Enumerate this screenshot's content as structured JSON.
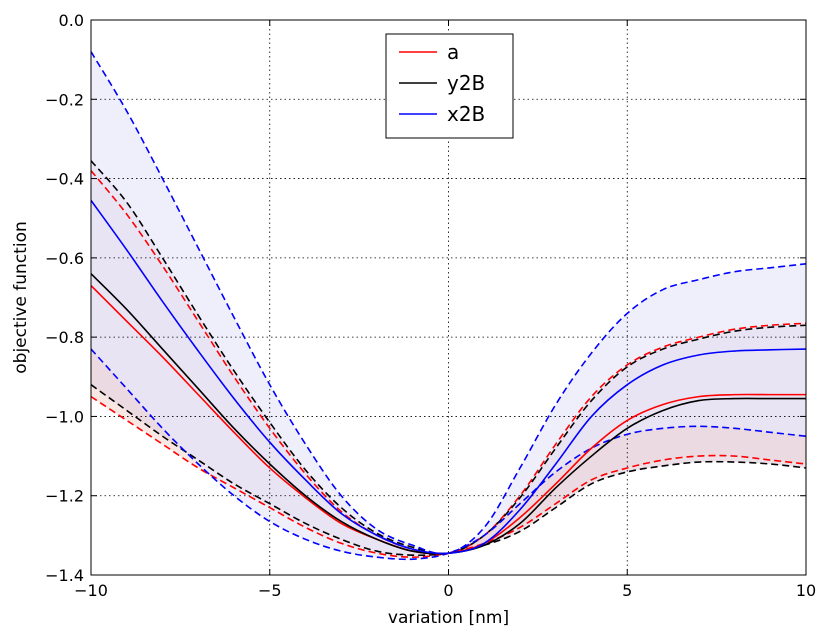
{
  "chart_data": {
    "type": "line",
    "title": "",
    "xlabel": "variation [nm]",
    "ylabel": "objective function",
    "xlim": [
      -10,
      10
    ],
    "ylim": [
      -1.4,
      0.0
    ],
    "xticks": [
      -10,
      -5,
      0,
      5,
      10
    ],
    "yticks": [
      0.0,
      -0.2,
      -0.4,
      -0.6,
      -0.8,
      -1.0,
      -1.2,
      -1.4
    ],
    "xtick_labels": [
      "−10",
      "−5",
      "0",
      "5",
      "10"
    ],
    "ytick_labels": [
      "0.0",
      "−0.2",
      "−0.4",
      "−0.6",
      "−0.8",
      "−1.0",
      "−1.2",
      "−1.4"
    ],
    "grid": true,
    "legend_position": "top-center",
    "x": [
      -10,
      -9,
      -8,
      -7,
      -6,
      -5,
      -4,
      -3,
      -2,
      -1,
      0,
      1,
      2,
      3,
      4,
      5,
      6,
      7,
      8,
      9,
      10
    ],
    "series": [
      {
        "name": "a",
        "color": "#ff0000",
        "fill": "#f7ddd8",
        "mean": [
          -0.67,
          -0.76,
          -0.85,
          -0.945,
          -1.04,
          -1.13,
          -1.205,
          -1.27,
          -1.31,
          -1.34,
          -1.345,
          -1.32,
          -1.255,
          -1.17,
          -1.08,
          -1.01,
          -0.97,
          -0.95,
          -0.945,
          -0.945,
          -0.945
        ],
        "upper": [
          -0.38,
          -0.49,
          -0.62,
          -0.76,
          -0.9,
          -1.03,
          -1.145,
          -1.24,
          -1.3,
          -1.335,
          -1.345,
          -1.3,
          -1.2,
          -1.07,
          -0.95,
          -0.87,
          -0.825,
          -0.8,
          -0.78,
          -0.77,
          -0.765
        ],
        "lower": [
          -0.95,
          -1.01,
          -1.07,
          -1.13,
          -1.18,
          -1.23,
          -1.28,
          -1.32,
          -1.345,
          -1.355,
          -1.345,
          -1.32,
          -1.28,
          -1.22,
          -1.16,
          -1.13,
          -1.11,
          -1.1,
          -1.1,
          -1.11,
          -1.12
        ]
      },
      {
        "name": "y2B",
        "color": "#000000",
        "fill": "#e6d4df",
        "mean": [
          -0.64,
          -0.73,
          -0.83,
          -0.93,
          -1.03,
          -1.12,
          -1.2,
          -1.265,
          -1.31,
          -1.34,
          -1.345,
          -1.325,
          -1.27,
          -1.18,
          -1.1,
          -1.03,
          -0.985,
          -0.96,
          -0.955,
          -0.955,
          -0.955
        ],
        "upper": [
          -0.355,
          -0.46,
          -0.6,
          -0.745,
          -0.885,
          -1.015,
          -1.135,
          -1.23,
          -1.295,
          -1.33,
          -1.345,
          -1.3,
          -1.205,
          -1.08,
          -0.96,
          -0.875,
          -0.83,
          -0.805,
          -0.785,
          -0.775,
          -0.77
        ],
        "lower": [
          -0.92,
          -0.985,
          -1.05,
          -1.11,
          -1.17,
          -1.22,
          -1.27,
          -1.31,
          -1.34,
          -1.35,
          -1.345,
          -1.325,
          -1.29,
          -1.23,
          -1.17,
          -1.14,
          -1.125,
          -1.115,
          -1.115,
          -1.12,
          -1.13
        ]
      },
      {
        "name": "x2B",
        "color": "#0000ff",
        "fill": "#e8e8fb",
        "mean": [
          -0.455,
          -0.58,
          -0.71,
          -0.835,
          -0.955,
          -1.065,
          -1.16,
          -1.245,
          -1.3,
          -1.335,
          -1.345,
          -1.32,
          -1.235,
          -1.12,
          -1.0,
          -0.92,
          -0.87,
          -0.845,
          -0.835,
          -0.832,
          -0.83
        ],
        "upper": [
          -0.08,
          -0.23,
          -0.4,
          -0.575,
          -0.75,
          -0.92,
          -1.07,
          -1.2,
          -1.285,
          -1.325,
          -1.345,
          -1.28,
          -1.13,
          -0.97,
          -0.84,
          -0.74,
          -0.68,
          -0.655,
          -0.635,
          -0.625,
          -0.615
        ],
        "lower": [
          -0.83,
          -0.93,
          -1.03,
          -1.12,
          -1.2,
          -1.265,
          -1.31,
          -1.34,
          -1.355,
          -1.36,
          -1.345,
          -1.3,
          -1.22,
          -1.14,
          -1.08,
          -1.045,
          -1.03,
          -1.025,
          -1.03,
          -1.04,
          -1.05
        ]
      }
    ]
  }
}
